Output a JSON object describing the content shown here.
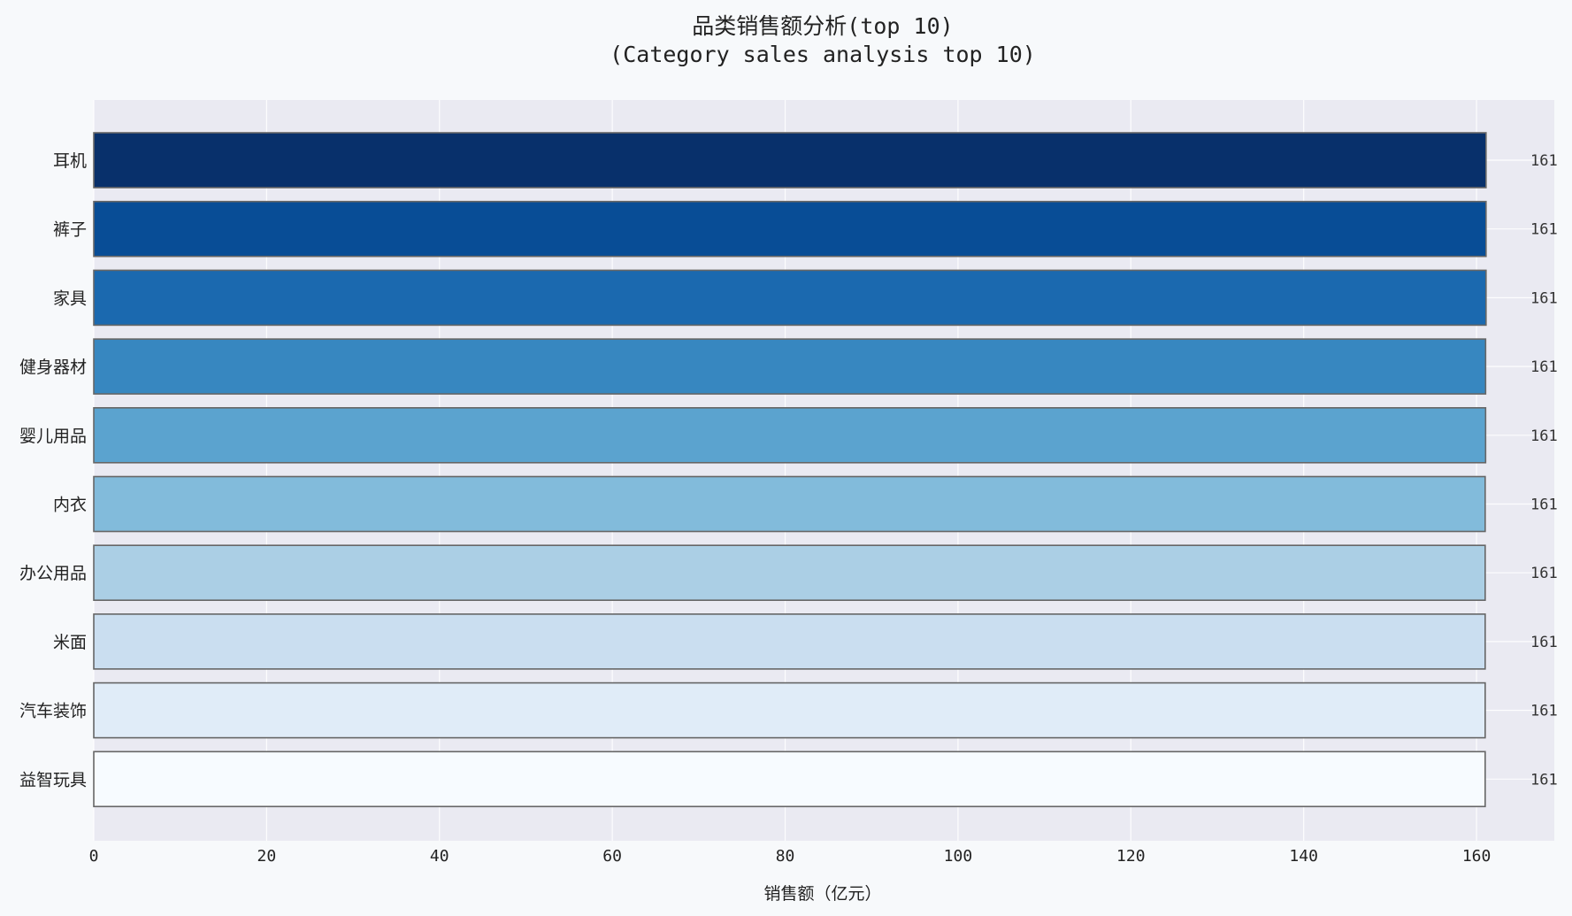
{
  "chart_data": {
    "type": "bar",
    "orientation": "horizontal",
    "title": "品类销售额分析(top 10)",
    "subtitle": "(Category sales analysis top 10)",
    "xlabel": "销售额（亿元）",
    "ylabel": "",
    "xlim": [
      0,
      169
    ],
    "xticks": [
      "0",
      "20",
      "40",
      "60",
      "80",
      "100",
      "120",
      "140",
      "160"
    ],
    "grid": true,
    "legend": "none",
    "categories": [
      "耳机",
      "裤子",
      "家具",
      "健身器材",
      "婴儿用品",
      "内衣",
      "办公用品",
      "米面",
      "汽车装饰",
      "益智玩具"
    ],
    "values": [
      161.1,
      161.1,
      161.1,
      161.05,
      161.05,
      161.0,
      161.0,
      161.0,
      161.0,
      161.0
    ],
    "value_labels": [
      "161",
      "161",
      "161",
      "161",
      "161",
      "161",
      "161",
      "161",
      "161",
      "161"
    ],
    "colors": [
      "#08306b",
      "#084d96",
      "#1b69af",
      "#3787c0",
      "#5ba3cf",
      "#82bbdb",
      "#abcfe5",
      "#cadef0",
      "#e0ecf8",
      "#f7fbff"
    ],
    "plot_background": "#eaeaf2",
    "page_background": "#f7f9fb",
    "bar_edge_color": "#666666"
  }
}
